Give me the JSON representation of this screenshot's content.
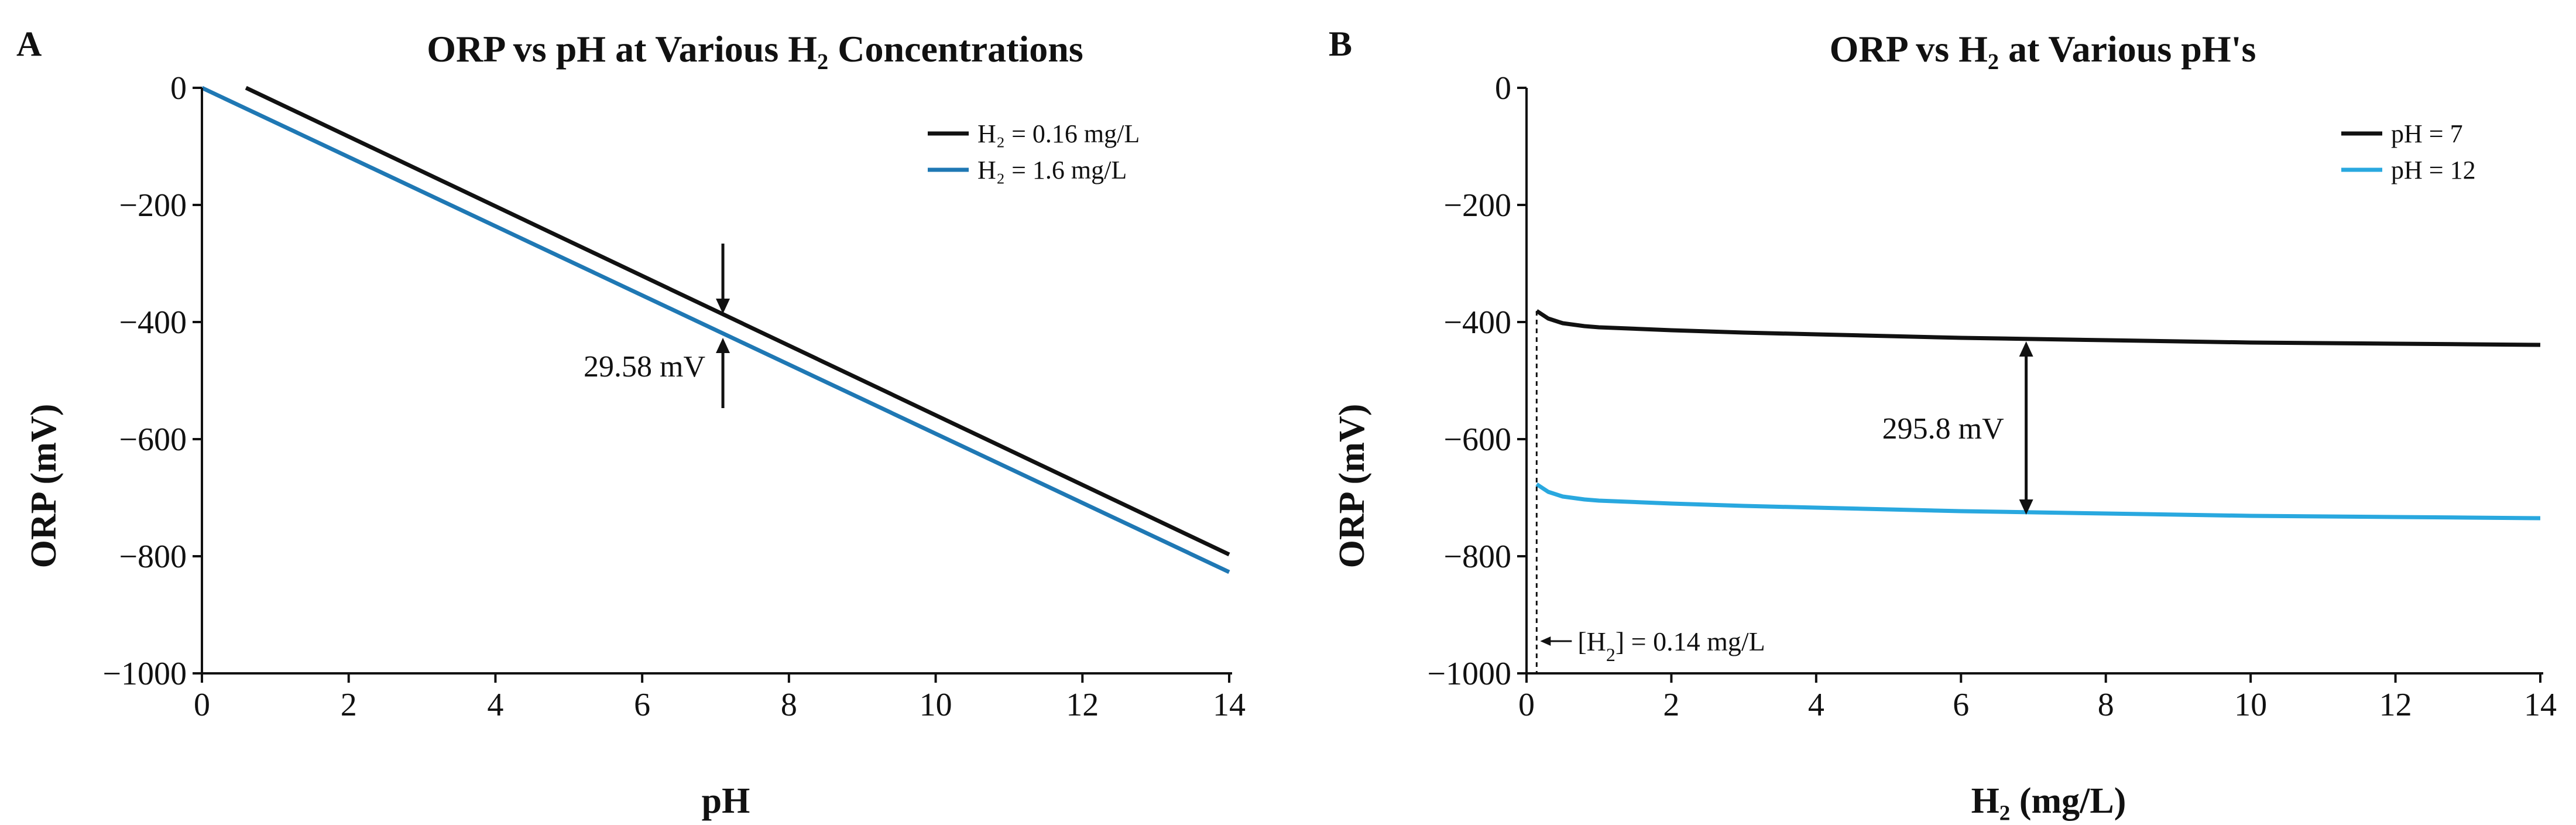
{
  "chart_data": [
    {
      "panel": "A",
      "type": "line",
      "title": "ORP vs pH at Various H₂ Concentrations",
      "xlabel": "pH",
      "ylabel": "ORP (mV)",
      "xlim": [
        0,
        14
      ],
      "ylim": [
        -1000,
        0
      ],
      "xticks": [
        0,
        2,
        4,
        6,
        8,
        10,
        12,
        14
      ],
      "yticks": [
        0,
        -200,
        -400,
        -600,
        -800,
        -1000
      ],
      "xtick_labels": [
        "0",
        "2",
        "4",
        "6",
        "8",
        "10",
        "12",
        "14"
      ],
      "ytick_labels": [
        "0",
        "−200",
        "−400",
        "−600",
        "−800",
        "−1000"
      ],
      "grid": false,
      "legend_position": "top-right",
      "series": [
        {
          "name": "H₂ = 0.16 mg/L",
          "color": "#111111",
          "x": [
            0.6,
            14
          ],
          "y": [
            0,
            -797
          ]
        },
        {
          "name": "H₂ = 1.6 mg/L",
          "color": "#1f78b4",
          "x": [
            0,
            14
          ],
          "y": [
            0,
            -827
          ]
        }
      ],
      "annotations": [
        {
          "text": "29.58 mV",
          "x": 7.1,
          "y_top": -392,
          "y_bottom": -421
        }
      ]
    },
    {
      "panel": "B",
      "type": "line",
      "title": "ORP vs H₂ at Various pH's",
      "xlabel": "H₂ (mg/L)",
      "ylabel": "ORP (mV)",
      "xlim": [
        0,
        14
      ],
      "ylim": [
        -1000,
        0
      ],
      "xticks": [
        0,
        2,
        4,
        6,
        8,
        10,
        12,
        14
      ],
      "yticks": [
        0,
        -200,
        -400,
        -600,
        -800,
        -1000
      ],
      "xtick_labels": [
        "0",
        "2",
        "4",
        "6",
        "8",
        "10",
        "12",
        "14"
      ],
      "ytick_labels": [
        "0",
        "−200",
        "−400",
        "−600",
        "−800",
        "−1000"
      ],
      "grid": false,
      "legend_position": "top-right",
      "series": [
        {
          "name": "pH = 7",
          "color": "#111111",
          "x": [
            0.14,
            0.3,
            0.5,
            0.8,
            1.0,
            2,
            3,
            4,
            5,
            6,
            7,
            8,
            9,
            10,
            11,
            12,
            13,
            14
          ],
          "y": [
            -381,
            -394,
            -402,
            -407,
            -409,
            -414,
            -418,
            -421,
            -424,
            -427,
            -429,
            -431,
            -433,
            -435,
            -436,
            -437,
            -438,
            -439
          ]
        },
        {
          "name": "pH = 12",
          "color": "#29a8df",
          "x": [
            0.14,
            0.3,
            0.5,
            0.8,
            1.0,
            2,
            3,
            4,
            5,
            6,
            7,
            8,
            9,
            10,
            11,
            12,
            13,
            14
          ],
          "y": [
            -677,
            -690,
            -698,
            -703,
            -705,
            -710,
            -714,
            -717,
            -720,
            -723,
            -725,
            -727,
            -729,
            -731,
            -732,
            -733,
            -734,
            -735
          ]
        }
      ],
      "annotations": [
        {
          "text": "295.8 mV",
          "x": 6.9,
          "y_top": -433,
          "y_bottom": -729
        },
        {
          "text_prefix": "[H",
          "text_sub": "2",
          "text_suffix": "] = 0.14 mg/L",
          "x": 0.14
        }
      ]
    }
  ]
}
